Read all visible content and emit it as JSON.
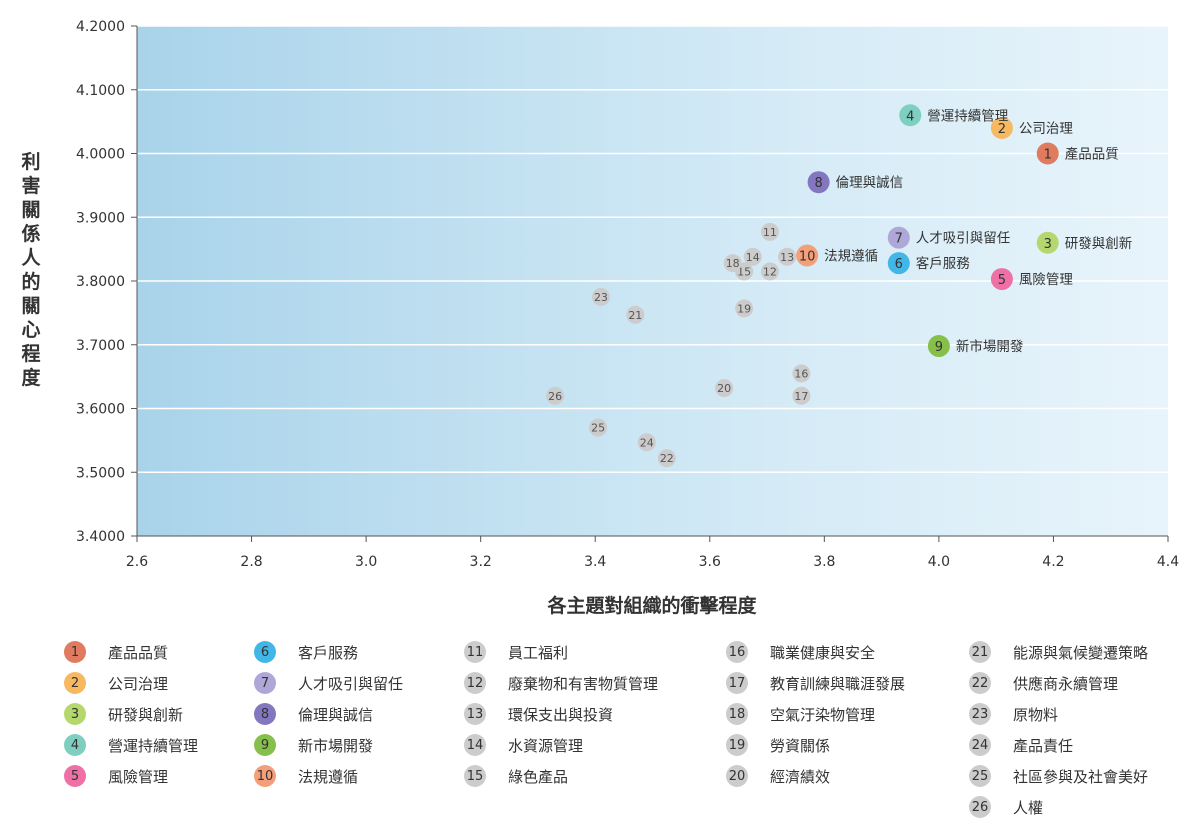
{
  "chart_data": {
    "type": "scatter",
    "title": "",
    "xlabel": "各主題對組織的衝擊程度",
    "ylabel": "利害關係人的關心程度",
    "xlim": [
      2.6,
      4.4
    ],
    "ylim": [
      3.4,
      4.2
    ],
    "x_ticks": [
      "2.6",
      "2.8",
      "3.0",
      "3.2",
      "3.4",
      "3.6",
      "3.8",
      "4.0",
      "4.2",
      "4.4"
    ],
    "y_ticks": [
      "3.4000",
      "3.5000",
      "3.6000",
      "3.7000",
      "3.8000",
      "3.9000",
      "4.0000",
      "4.1000",
      "4.2000"
    ],
    "grid": true,
    "points": [
      {
        "id": "1",
        "label": "產品品質",
        "x": 4.19,
        "y": 4.0,
        "color": "#e07b5f",
        "highlight": true
      },
      {
        "id": "2",
        "label": "公司治理",
        "x": 4.11,
        "y": 4.04,
        "color": "#f6b962",
        "highlight": true
      },
      {
        "id": "3",
        "label": "研發與創新",
        "x": 4.19,
        "y": 3.86,
        "color": "#b5d86e",
        "highlight": true
      },
      {
        "id": "4",
        "label": "營運持續管理",
        "x": 3.95,
        "y": 4.06,
        "color": "#7fcfc0",
        "highlight": true
      },
      {
        "id": "5",
        "label": "風險管理",
        "x": 4.11,
        "y": 3.803,
        "color": "#ef6fa7",
        "highlight": true
      },
      {
        "id": "6",
        "label": "客戶服務",
        "x": 3.93,
        "y": 3.828,
        "color": "#43b6e8",
        "highlight": true
      },
      {
        "id": "7",
        "label": "人才吸引與留任",
        "x": 3.93,
        "y": 3.868,
        "color": "#b0a7d9",
        "highlight": true
      },
      {
        "id": "8",
        "label": "倫理與誠信",
        "x": 3.79,
        "y": 3.955,
        "color": "#8378bf",
        "highlight": true
      },
      {
        "id": "9",
        "label": "新市場開發",
        "x": 4.0,
        "y": 3.698,
        "color": "#86bf4a",
        "highlight": true
      },
      {
        "id": "10",
        "label": "法規遵循",
        "x": 3.77,
        "y": 3.84,
        "color": "#f39f7a",
        "highlight": true
      },
      {
        "id": "11",
        "label": "員工福利",
        "x": 3.705,
        "y": 3.877,
        "color": "#cccccc",
        "highlight": false
      },
      {
        "id": "12",
        "label": "廢棄物和有害物質管理",
        "x": 3.705,
        "y": 3.815,
        "color": "#cccccc",
        "highlight": false
      },
      {
        "id": "13",
        "label": "環保支出與投資",
        "x": 3.735,
        "y": 3.838,
        "color": "#cccccc",
        "highlight": false
      },
      {
        "id": "14",
        "label": "水資源管理",
        "x": 3.675,
        "y": 3.838,
        "color": "#cccccc",
        "highlight": false
      },
      {
        "id": "15",
        "label": "綠色產品",
        "x": 3.66,
        "y": 3.815,
        "color": "#cccccc",
        "highlight": false
      },
      {
        "id": "16",
        "label": "職業健康與安全",
        "x": 3.76,
        "y": 3.655,
        "color": "#cccccc",
        "highlight": false
      },
      {
        "id": "17",
        "label": "教育訓練與職涯發展",
        "x": 3.76,
        "y": 3.62,
        "color": "#cccccc",
        "highlight": false
      },
      {
        "id": "18",
        "label": "空氣汙染物管理",
        "x": 3.64,
        "y": 3.828,
        "color": "#cccccc",
        "highlight": false
      },
      {
        "id": "19",
        "label": "勞資關係",
        "x": 3.66,
        "y": 3.757,
        "color": "#cccccc",
        "highlight": false
      },
      {
        "id": "20",
        "label": "經濟績效",
        "x": 3.625,
        "y": 3.632,
        "color": "#cccccc",
        "highlight": false
      },
      {
        "id": "21",
        "label": "能源與氣候變遷策略",
        "x": 3.47,
        "y": 3.747,
        "color": "#cccccc",
        "highlight": false
      },
      {
        "id": "22",
        "label": "供應商永續管理",
        "x": 3.525,
        "y": 3.522,
        "color": "#cccccc",
        "highlight": false
      },
      {
        "id": "23",
        "label": "原物料",
        "x": 3.41,
        "y": 3.775,
        "color": "#cccccc",
        "highlight": false
      },
      {
        "id": "24",
        "label": "產品責任",
        "x": 3.49,
        "y": 3.547,
        "color": "#cccccc",
        "highlight": false
      },
      {
        "id": "25",
        "label": "社區參與及社會美好",
        "x": 3.405,
        "y": 3.57,
        "color": "#cccccc",
        "highlight": false
      },
      {
        "id": "26",
        "label": "人權",
        "x": 3.33,
        "y": 3.62,
        "color": "#cccccc",
        "highlight": false
      }
    ]
  }
}
